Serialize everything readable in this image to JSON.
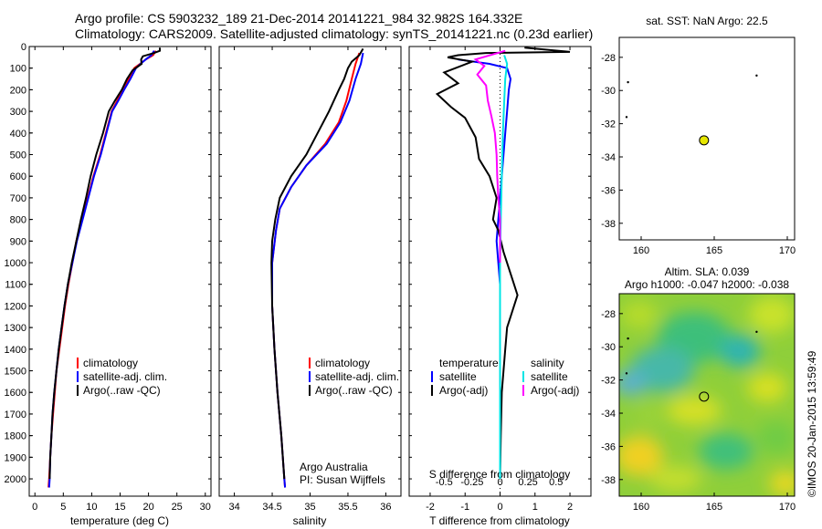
{
  "header": {
    "line1": "Argo profile: CS 5903232_189 21-Dec-2014 20141221_984 32.982S 164.332E",
    "line2": "Climatology: CARS2009. Satellite-adjusted climatology: synTS_20141221.nc (0.23d earlier)"
  },
  "watermark": "©IMOS 20-Jan-2015 13:59:49",
  "colors": {
    "clim": "#ff0000",
    "sat": "#0000ff",
    "argo": "#000000",
    "sal_sat": "#00e5e5",
    "sal_argo": "#ff00ff",
    "marker": "#e6e600"
  },
  "chart_data": [
    {
      "type": "line",
      "id": "temperature",
      "xlabel": "temperature (deg C)",
      "xlim": [
        -1,
        31
      ],
      "ylim": [
        2080,
        0
      ],
      "xticks": [
        "0",
        "5",
        "10",
        "15",
        "20",
        "25",
        "30"
      ],
      "yticks": [
        "0",
        "100",
        "200",
        "300",
        "400",
        "500",
        "600",
        "700",
        "800",
        "900",
        "1000",
        "1100",
        "1200",
        "1300",
        "1400",
        "1500",
        "1600",
        "1700",
        "1800",
        "1900",
        "2000"
      ],
      "legend": [
        "climatology",
        "satellite-adj. clim.",
        "Argo(..raw -QC)"
      ],
      "series": [
        {
          "name": "climatology",
          "color": "#ff0000",
          "points": [
            [
              21.3,
              20
            ],
            [
              20.8,
              40
            ],
            [
              19.5,
              60
            ],
            [
              18.5,
              80
            ],
            [
              17.5,
              100
            ],
            [
              16.5,
              150
            ],
            [
              15.5,
              200
            ],
            [
              14.5,
              250
            ],
            [
              13.5,
              300
            ],
            [
              12.5,
              400
            ],
            [
              11.5,
              500
            ],
            [
              10.3,
              600
            ],
            [
              9.3,
              700
            ],
            [
              8.3,
              800
            ],
            [
              7.3,
              900
            ],
            [
              6.6,
              1000
            ],
            [
              5.9,
              1100
            ],
            [
              5.3,
              1200
            ],
            [
              4.8,
              1300
            ],
            [
              4.3,
              1400
            ],
            [
              3.8,
              1500
            ],
            [
              3.5,
              1600
            ],
            [
              3.2,
              1700
            ],
            [
              2.9,
              1800
            ],
            [
              2.7,
              1900
            ],
            [
              2.5,
              2000
            ],
            [
              2.4,
              2040
            ]
          ]
        },
        {
          "name": "satellite-adj. clim.",
          "color": "#0000ff",
          "points": [
            [
              21.0,
              20
            ],
            [
              20.5,
              40
            ],
            [
              19.5,
              60
            ],
            [
              18.6,
              80
            ],
            [
              17.8,
              100
            ],
            [
              16.8,
              150
            ],
            [
              15.7,
              200
            ],
            [
              14.7,
              250
            ],
            [
              13.6,
              300
            ],
            [
              12.6,
              400
            ],
            [
              11.6,
              500
            ],
            [
              10.4,
              600
            ],
            [
              9.4,
              700
            ],
            [
              8.4,
              800
            ],
            [
              7.4,
              900
            ],
            [
              6.6,
              1000
            ],
            [
              5.8,
              1100
            ],
            [
              5.2,
              1200
            ],
            [
              4.7,
              1300
            ],
            [
              4.2,
              1400
            ],
            [
              3.8,
              1500
            ],
            [
              3.4,
              1600
            ],
            [
              3.1,
              1700
            ],
            [
              2.9,
              1800
            ],
            [
              2.7,
              1900
            ],
            [
              2.6,
              2000
            ],
            [
              2.5,
              2040
            ]
          ]
        },
        {
          "name": "Argo(..raw -QC)",
          "color": "#000000",
          "points": [
            [
              22.0,
              5
            ],
            [
              22.0,
              20
            ],
            [
              21.0,
              30
            ],
            [
              19.0,
              45
            ],
            [
              18.7,
              60
            ],
            [
              18.8,
              80
            ],
            [
              17.2,
              110
            ],
            [
              16.2,
              150
            ],
            [
              15.3,
              200
            ],
            [
              14.1,
              250
            ],
            [
              13.0,
              300
            ],
            [
              12.0,
              400
            ],
            [
              10.8,
              500
            ],
            [
              9.8,
              600
            ],
            [
              9.0,
              700
            ],
            [
              8.1,
              800
            ],
            [
              7.3,
              900
            ],
            [
              6.5,
              1000
            ],
            [
              5.8,
              1100
            ],
            [
              5.2,
              1200
            ],
            [
              4.7,
              1300
            ],
            [
              4.2,
              1400
            ],
            [
              3.8,
              1500
            ],
            [
              3.4,
              1600
            ],
            [
              3.1,
              1700
            ],
            [
              2.9,
              1800
            ],
            [
              2.7,
              1900
            ],
            [
              2.6,
              2000
            ]
          ]
        }
      ]
    },
    {
      "type": "line",
      "id": "salinity",
      "xlabel": "salinity",
      "xlim": [
        33.8,
        36.2
      ],
      "ylim": [
        2080,
        0
      ],
      "xticks": [
        "34",
        "34.5",
        "35",
        "35.5",
        "36"
      ],
      "legend": [
        "climatology",
        "satellite-adj. clim.",
        "Argo(..raw -QC)"
      ],
      "note": [
        "Argo Australia",
        "PI: Susan Wijffels"
      ],
      "series": [
        {
          "name": "climatology",
          "color": "#ff0000",
          "points": [
            [
              35.65,
              30
            ],
            [
              35.6,
              80
            ],
            [
              35.55,
              150
            ],
            [
              35.48,
              250
            ],
            [
              35.38,
              350
            ],
            [
              35.2,
              450
            ],
            [
              34.95,
              550
            ],
            [
              34.75,
              650
            ],
            [
              34.6,
              750
            ],
            [
              34.55,
              850
            ],
            [
              34.5,
              1000
            ],
            [
              34.5,
              1200
            ],
            [
              34.53,
              1400
            ],
            [
              34.57,
              1600
            ],
            [
              34.62,
              1800
            ],
            [
              34.66,
              2000
            ],
            [
              34.67,
              2040
            ]
          ]
        },
        {
          "name": "satellite-adj. clim.",
          "color": "#0000ff",
          "points": [
            [
              35.7,
              30
            ],
            [
              35.67,
              80
            ],
            [
              35.6,
              150
            ],
            [
              35.52,
              250
            ],
            [
              35.4,
              350
            ],
            [
              35.22,
              450
            ],
            [
              34.95,
              550
            ],
            [
              34.75,
              650
            ],
            [
              34.6,
              750
            ],
            [
              34.55,
              850
            ],
            [
              34.5,
              1000
            ],
            [
              34.5,
              1200
            ],
            [
              34.53,
              1400
            ],
            [
              34.57,
              1600
            ],
            [
              34.62,
              1800
            ],
            [
              34.66,
              2000
            ],
            [
              34.67,
              2040
            ]
          ]
        },
        {
          "name": "Argo(..raw -QC)",
          "color": "#000000",
          "points": [
            [
              35.7,
              10
            ],
            [
              35.65,
              40
            ],
            [
              35.55,
              70
            ],
            [
              35.5,
              100
            ],
            [
              35.45,
              150
            ],
            [
              35.38,
              200
            ],
            [
              35.25,
              300
            ],
            [
              35.1,
              400
            ],
            [
              34.95,
              500
            ],
            [
              34.75,
              600
            ],
            [
              34.6,
              700
            ],
            [
              34.54,
              800
            ],
            [
              34.5,
              900
            ],
            [
              34.49,
              1000
            ],
            [
              34.5,
              1200
            ],
            [
              34.53,
              1400
            ],
            [
              34.57,
              1600
            ],
            [
              34.62,
              1800
            ],
            [
              34.66,
              2000
            ]
          ]
        }
      ]
    },
    {
      "type": "line",
      "id": "difference",
      "xlabel": "T difference from climatology",
      "xlabel_top": "S difference from climatology",
      "xlim": [
        -2.6,
        2.6
      ],
      "ylim": [
        2080,
        0
      ],
      "xticks": [
        "-2",
        "-1",
        "0",
        "1",
        "2"
      ],
      "xticks_top": [
        "-0.5",
        "-0.25",
        "0",
        "0.25",
        "0.5"
      ],
      "legend_titles": [
        "temperature",
        "salinity"
      ],
      "legend": [
        "satellite",
        "Argo(-adj)",
        "satellite",
        "Argo(-adj)"
      ],
      "series": [
        {
          "name": "temperature satellite",
          "color": "#0000ff",
          "points": [
            [
              -1.2,
              60
            ],
            [
              -0.3,
              80
            ],
            [
              0.2,
              100
            ],
            [
              0.3,
              150
            ],
            [
              0.25,
              200
            ],
            [
              0.2,
              300
            ],
            [
              0.15,
              400
            ],
            [
              0.1,
              500
            ],
            [
              0.05,
              600
            ],
            [
              0.0,
              700
            ],
            [
              -0.05,
              800
            ],
            [
              -0.1,
              900
            ],
            [
              -0.05,
              1000
            ],
            [
              0.0,
              1100
            ],
            [
              0.0,
              1200
            ],
            [
              0.0,
              1400
            ],
            [
              0.0,
              1600
            ],
            [
              0.0,
              2000
            ]
          ]
        },
        {
          "name": "temperature Argo(-adj)",
          "color": "#000000",
          "points": [
            [
              0.7,
              5
            ],
            [
              2.0,
              25
            ],
            [
              -0.4,
              30
            ],
            [
              -1.2,
              40
            ],
            [
              -1.5,
              50
            ],
            [
              -0.8,
              70
            ],
            [
              -1.6,
              120
            ],
            [
              -1.2,
              170
            ],
            [
              -1.8,
              220
            ],
            [
              -1.4,
              280
            ],
            [
              -1.0,
              330
            ],
            [
              -0.7,
              420
            ],
            [
              -0.6,
              520
            ],
            [
              -0.3,
              600
            ],
            [
              -0.1,
              700
            ],
            [
              -0.2,
              800
            ],
            [
              -0.05,
              850
            ],
            [
              0.1,
              950
            ],
            [
              0.3,
              1050
            ],
            [
              0.4,
              1100
            ],
            [
              0.5,
              1150
            ],
            [
              0.3,
              1250
            ],
            [
              0.2,
              1300
            ],
            [
              0.15,
              1400
            ],
            [
              0.1,
              1500
            ],
            [
              0.05,
              1600
            ],
            [
              0.02,
              1800
            ],
            [
              0.0,
              2000
            ]
          ]
        },
        {
          "name": "salinity satellite",
          "color": "#00e5e5",
          "points": [
            [
              0.12,
              40
            ],
            [
              0.2,
              80
            ],
            [
              0.15,
              150
            ],
            [
              0.12,
              250
            ],
            [
              0.08,
              400
            ],
            [
              0.05,
              600
            ],
            [
              0.02,
              800
            ],
            [
              0.0,
              1000
            ],
            [
              0.0,
              1200
            ],
            [
              0.0,
              1600
            ],
            [
              0.0,
              2000
            ]
          ]
        },
        {
          "name": "salinity Argo(-adj)",
          "color": "#ff00ff",
          "points": [
            [
              0.15,
              20
            ],
            [
              -0.7,
              60
            ],
            [
              -0.45,
              90
            ],
            [
              -0.65,
              130
            ],
            [
              -0.4,
              180
            ],
            [
              -0.35,
              250
            ],
            [
              -0.25,
              320
            ],
            [
              -0.15,
              400
            ],
            [
              -0.1,
              500
            ],
            [
              -0.08,
              600
            ],
            [
              -0.05,
              700
            ],
            [
              0.0,
              800
            ],
            [
              0.0,
              1000
            ]
          ]
        }
      ]
    },
    {
      "type": "scatter",
      "id": "sst-map",
      "title": "sat. SST: NaN Argo: 22.5",
      "xlim": [
        158.5,
        170.5
      ],
      "ylim": [
        -39,
        -26.8
      ],
      "xticks": [
        "160",
        "165",
        "170"
      ],
      "yticks": [
        "-28",
        "-30",
        "-32",
        "-34",
        "-36",
        "-38"
      ],
      "points": [
        [
          164.3,
          -33.0
        ]
      ]
    },
    {
      "type": "heatmap",
      "id": "sla-map",
      "title": [
        "Altim. SLA: 0.039",
        "Argo h1000: -0.047 h2000: -0.038"
      ],
      "xlim": [
        158.5,
        170.5
      ],
      "ylim": [
        -39,
        -26.8
      ],
      "xticks": [
        "160",
        "165",
        "170"
      ],
      "yticks": [
        "-28",
        "-30",
        "-32",
        "-34",
        "-36",
        "-38"
      ],
      "points": [
        [
          164.3,
          -33.0
        ]
      ]
    }
  ]
}
